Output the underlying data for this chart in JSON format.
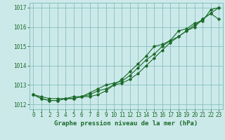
{
  "title": "Graphe pression niveau de la mer (hPa)",
  "bg_color": "#cce9e9",
  "grid_color": "#7ab8b8",
  "line_color": "#1a6b2a",
  "x": [
    0,
    1,
    2,
    3,
    4,
    5,
    6,
    7,
    8,
    9,
    10,
    11,
    12,
    13,
    14,
    15,
    16,
    17,
    18,
    19,
    20,
    21,
    22,
    23
  ],
  "line1": [
    1012.5,
    1012.3,
    1012.2,
    1012.2,
    1012.3,
    1012.3,
    1012.4,
    1012.4,
    1012.5,
    1012.7,
    1013.0,
    1013.3,
    1013.7,
    1014.1,
    1014.5,
    1015.0,
    1015.1,
    1015.3,
    1015.8,
    1015.9,
    1016.2,
    1016.3,
    1016.9,
    1017.0
  ],
  "line2": [
    1012.5,
    1012.3,
    1012.2,
    1012.2,
    1012.3,
    1012.3,
    1012.4,
    1012.6,
    1012.8,
    1013.0,
    1013.1,
    1013.2,
    1013.5,
    1013.9,
    1014.3,
    1014.6,
    1015.0,
    1015.3,
    1015.5,
    1015.8,
    1016.0,
    1016.4,
    1016.7,
    1016.4
  ],
  "line3": [
    1012.5,
    1012.4,
    1012.3,
    1012.3,
    1012.3,
    1012.4,
    1012.4,
    1012.5,
    1012.7,
    1012.8,
    1013.0,
    1013.1,
    1013.3,
    1013.6,
    1014.0,
    1014.4,
    1014.8,
    1015.2,
    1015.5,
    1015.8,
    1016.1,
    1016.4,
    1016.7,
    1017.0
  ],
  "ylim_min": 1011.75,
  "ylim_max": 1017.25,
  "yticks": [
    1012,
    1013,
    1014,
    1015,
    1016,
    1017
  ],
  "xticks": [
    0,
    1,
    2,
    3,
    4,
    5,
    6,
    7,
    8,
    9,
    10,
    11,
    12,
    13,
    14,
    15,
    16,
    17,
    18,
    19,
    20,
    21,
    22,
    23
  ],
  "tick_fontsize": 5.5,
  "title_fontsize": 6.5,
  "lw": 0.8,
  "markersize": 1.8
}
